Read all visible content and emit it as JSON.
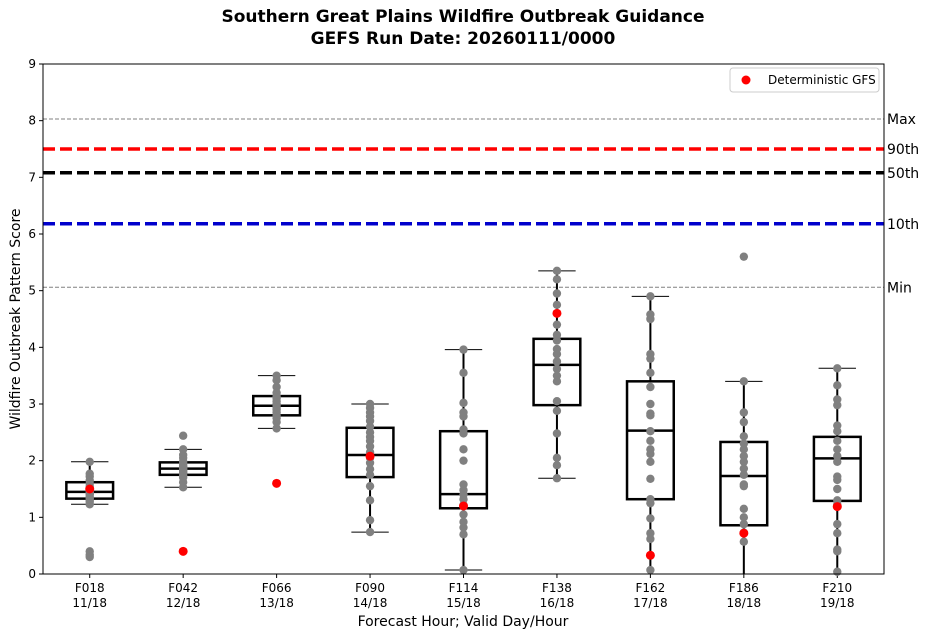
{
  "chart_data": {
    "type": "box",
    "title": "Southern Great Plains Wildfire Outbreak Guidance",
    "subtitle": "GEFS Run Date: 20260111/0000",
    "xlabel": "Forecast Hour; Valid Day/Hour",
    "ylabel": "Wildfire Outbreak Pattern Score",
    "ylim": [
      0,
      9
    ],
    "yticks": [
      "0",
      "1",
      "2",
      "3",
      "4",
      "5",
      "6",
      "7",
      "8",
      "9"
    ],
    "categories": [
      {
        "hour": "F018",
        "valid": "11/18"
      },
      {
        "hour": "F042",
        "valid": "12/18"
      },
      {
        "hour": "F066",
        "valid": "13/18"
      },
      {
        "hour": "F090",
        "valid": "14/18"
      },
      {
        "hour": "F114",
        "valid": "15/18"
      },
      {
        "hour": "F138",
        "valid": "16/18"
      },
      {
        "hour": "F162",
        "valid": "17/18"
      },
      {
        "hour": "F186",
        "valid": "18/18"
      },
      {
        "hour": "F210",
        "valid": "19/18"
      }
    ],
    "reference_lines": [
      {
        "label": "Max",
        "value": 8.03,
        "color": "#808080",
        "style": "thin-dashed"
      },
      {
        "label": "90th",
        "value": 7.5,
        "color": "#ff0000",
        "style": "thick-dashed"
      },
      {
        "label": "50th",
        "value": 7.08,
        "color": "#000000",
        "style": "thick-dashed"
      },
      {
        "label": "10th",
        "value": 6.18,
        "color": "#0000cc",
        "style": "thick-dashed"
      },
      {
        "label": "Min",
        "value": 5.06,
        "color": "#808080",
        "style": "thin-dashed"
      }
    ],
    "boxes": [
      {
        "whisker_low": 1.23,
        "q1": 1.33,
        "median": 1.45,
        "q3": 1.62,
        "whisker_high": 1.98
      },
      {
        "whisker_low": 1.53,
        "q1": 1.75,
        "median": 1.86,
        "q3": 1.97,
        "whisker_high": 2.2
      },
      {
        "whisker_low": 2.57,
        "q1": 2.8,
        "median": 2.97,
        "q3": 3.14,
        "whisker_high": 3.5
      },
      {
        "whisker_low": 0.74,
        "q1": 1.71,
        "median": 2.1,
        "q3": 2.58,
        "whisker_high": 3.0
      },
      {
        "whisker_low": 0.07,
        "q1": 1.16,
        "median": 1.41,
        "q3": 2.52,
        "whisker_high": 3.96
      },
      {
        "whisker_low": 1.69,
        "q1": 2.98,
        "median": 3.69,
        "q3": 4.15,
        "whisker_high": 5.35
      },
      {
        "whisker_low": 0.0,
        "q1": 1.32,
        "median": 2.53,
        "q3": 3.4,
        "whisker_high": 4.9
      },
      {
        "whisker_low": 0.0,
        "q1": 0.86,
        "median": 1.73,
        "q3": 2.33,
        "whisker_high": 3.4
      },
      {
        "whisker_low": 0.0,
        "q1": 1.29,
        "median": 2.04,
        "q3": 2.42,
        "whisker_high": 3.63
      }
    ],
    "members": [
      [
        1.98,
        1.77,
        1.72,
        1.65,
        1.6,
        1.55,
        1.5,
        1.47,
        1.44,
        1.42,
        1.4,
        1.36,
        1.33,
        1.3,
        1.27,
        1.23,
        0.4,
        0.34,
        0.3
      ],
      [
        2.44,
        2.2,
        2.1,
        2.05,
        1.99,
        1.95,
        1.92,
        1.9,
        1.88,
        1.86,
        1.84,
        1.82,
        1.8,
        1.78,
        1.74,
        1.7,
        1.62,
        1.53
      ],
      [
        3.5,
        3.42,
        3.3,
        3.2,
        3.14,
        3.1,
        3.05,
        3.0,
        2.97,
        2.93,
        2.9,
        2.85,
        2.8,
        2.75,
        2.68,
        2.57
      ],
      [
        3.0,
        2.93,
        2.85,
        2.78,
        2.7,
        2.6,
        2.5,
        2.42,
        2.35,
        2.25,
        2.15,
        2.05,
        1.96,
        1.85,
        1.75,
        1.55,
        1.3,
        0.95,
        0.74
      ],
      [
        3.96,
        3.55,
        3.02,
        2.85,
        2.78,
        2.55,
        2.48,
        2.2,
        2.0,
        1.58,
        1.48,
        1.4,
        1.32,
        1.22,
        1.05,
        0.92,
        0.82,
        0.7,
        0.07
      ],
      [
        5.35,
        5.2,
        4.95,
        4.75,
        4.6,
        4.4,
        4.22,
        4.12,
        3.97,
        3.88,
        3.75,
        3.62,
        3.5,
        3.4,
        3.05,
        2.88,
        2.48,
        2.05,
        1.92,
        1.69
      ],
      [
        4.9,
        4.58,
        4.5,
        3.88,
        3.8,
        3.55,
        3.3,
        3.0,
        2.83,
        2.8,
        2.52,
        2.35,
        2.2,
        2.12,
        1.98,
        1.68,
        1.32,
        1.25,
        0.98,
        0.72,
        0.62,
        0.33,
        0.07
      ],
      [
        5.6,
        3.4,
        2.85,
        2.68,
        2.43,
        2.3,
        2.2,
        2.08,
        1.98,
        1.86,
        1.75,
        1.58,
        1.55,
        1.15,
        1.0,
        0.88,
        0.73,
        0.57
      ],
      [
        3.63,
        3.33,
        3.08,
        2.98,
        2.62,
        2.52,
        2.35,
        2.2,
        2.08,
        1.98,
        1.72,
        1.66,
        1.5,
        1.3,
        1.23,
        0.88,
        0.72,
        0.43,
        0.4,
        0.04
      ]
    ],
    "deterministic_gfs": [
      1.5,
      0.4,
      1.6,
      2.08,
      1.2,
      4.6,
      0.33,
      0.72,
      1.19
    ],
    "legend": {
      "label": "Deterministic GFS",
      "position": "top-right"
    },
    "colors": {
      "member": "#808080",
      "deterministic": "#ff0000",
      "box": "#000000"
    }
  }
}
